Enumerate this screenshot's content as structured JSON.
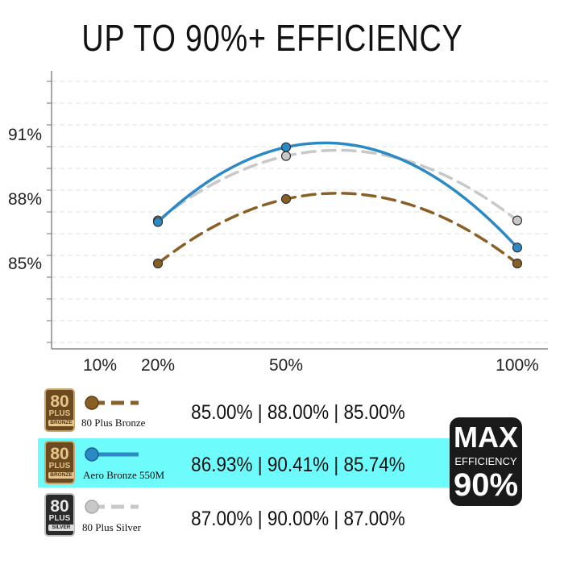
{
  "title": "UP TO 90%+ EFFICIENCY",
  "chart_data": {
    "type": "line",
    "x_tick_labels": [
      "10%",
      "20%",
      "50%",
      "100%"
    ],
    "y_tick_labels": [
      "85%",
      "88%",
      "91%"
    ],
    "x": [
      20,
      50,
      100
    ],
    "ylim": [
      80.9,
      94.5
    ],
    "grid": true,
    "series": [
      {
        "name": "80 Plus Silver",
        "values": [
          87.0,
          90.0,
          87.0
        ],
        "color": "#c8c8c8",
        "style": "dashed"
      },
      {
        "name": "80 Plus Bronze",
        "values": [
          85.0,
          88.0,
          85.0
        ],
        "color": "#8a5f24",
        "style": "dashed"
      },
      {
        "name": "Aero Bronze 550M",
        "values": [
          86.93,
          90.41,
          85.74
        ],
        "color": "#2b8ac6",
        "style": "solid"
      }
    ]
  },
  "legend": [
    {
      "name": "80 Plus Bronze",
      "values": "85.00% | 88.00% | 85.00%",
      "badge_number": "80",
      "badge_plus": "PLUS",
      "badge_tier": "BRONZE",
      "highlighted": false
    },
    {
      "name": "Aero Bronze 550M",
      "values": "86.93% | 90.41% | 85.74%",
      "badge_number": "80",
      "badge_plus": "PLUS",
      "badge_tier": "BRONZE",
      "highlighted": true
    },
    {
      "name": "80 Plus Silver",
      "values": "87.00% | 90.00% | 87.00%",
      "badge_number": "80",
      "badge_plus": "PLUS",
      "badge_tier": "SILVER",
      "highlighted": false
    }
  ],
  "max_badge": {
    "line1": "MAX",
    "line2": "EFFICIENCY",
    "line3": "90%"
  },
  "colors": {
    "highlight": "#6dfbfb",
    "bronze": "#8a5f24",
    "silver": "#c8c8c8",
    "aero": "#2b8ac6",
    "axis": "#888888",
    "grid": "#e2e2e2"
  }
}
